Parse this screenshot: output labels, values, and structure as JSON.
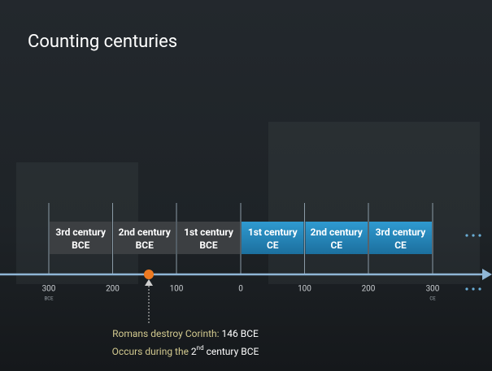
{
  "title": "Counting centuries",
  "centuries": [
    {
      "line1": "3rd century",
      "line2": "BCE"
    },
    {
      "line1": "2nd century",
      "line2": "BCE"
    },
    {
      "line1": "1st century",
      "line2": "BCE"
    },
    {
      "line1": "1st century",
      "line2": "CE"
    },
    {
      "line1": "2nd century",
      "line2": "CE"
    },
    {
      "line1": "3rd century",
      "line2": "CE"
    }
  ],
  "ticks": [
    {
      "label": "300",
      "sub": "BCE"
    },
    {
      "label": "200"
    },
    {
      "label": "100"
    },
    {
      "label": "0"
    },
    {
      "label": "100"
    },
    {
      "label": "200"
    },
    {
      "label": "300",
      "sub": "CE"
    }
  ],
  "annotation": {
    "line1_prefix": "Romans destroy Corinth: ",
    "line1_value": "146 BCE",
    "line2_prefix": "Occurs during the ",
    "line2_base": "2",
    "line2_sup": "nd",
    "line2_suffix": " century BCE"
  }
}
